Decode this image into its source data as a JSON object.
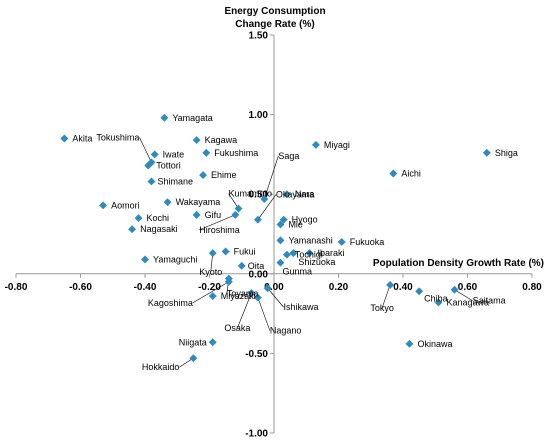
{
  "chart_data": {
    "type": "scatter",
    "title": "",
    "ylabel_line1": "Energy Consumption",
    "ylabel_line2": "Change Rate  (%)",
    "xlabel": "Population Density Growth Rate (%)",
    "xlim": [
      -0.8,
      0.8
    ],
    "ylim": [
      -1.0,
      1.5
    ],
    "xticks": [
      "-0.80",
      "-0.60",
      "-0.40",
      "-0.20",
      "0.00",
      "0.20",
      "0.40",
      "0.60",
      "0.80"
    ],
    "yticks": [
      "1.50",
      "1.00",
      "0.50",
      "0.00",
      "-0.50",
      "-1.00"
    ],
    "marker_color": "#2E8BC0",
    "grid": false,
    "legend": "none",
    "points": [
      {
        "label": "Hokkaido",
        "x": -0.25,
        "y": -0.53
      },
      {
        "label": "Aomori",
        "x": -0.53,
        "y": 0.43
      },
      {
        "label": "Iwate",
        "x": -0.37,
        "y": 0.75
      },
      {
        "label": "Miyagi",
        "x": 0.13,
        "y": 0.81
      },
      {
        "label": "Akita",
        "x": -0.65,
        "y": 0.85
      },
      {
        "label": "Yamagata",
        "x": -0.34,
        "y": 0.98
      },
      {
        "label": "Fukushima",
        "x": -0.21,
        "y": 0.76
      },
      {
        "label": "Ibaraki",
        "x": 0.11,
        "y": 0.13
      },
      {
        "label": "Tochigi",
        "x": 0.04,
        "y": 0.12
      },
      {
        "label": "Gunma",
        "x": 0.02,
        "y": 0.07
      },
      {
        "label": "Saitama",
        "x": 0.56,
        "y": -0.1
      },
      {
        "label": "Chiba",
        "x": 0.45,
        "y": -0.11
      },
      {
        "label": "Tokyo",
        "x": 0.36,
        "y": -0.07
      },
      {
        "label": "Kanagawa",
        "x": 0.51,
        "y": -0.18
      },
      {
        "label": "Niigata",
        "x": -0.19,
        "y": -0.43
      },
      {
        "label": "Toyama",
        "x": -0.14,
        "y": -0.03
      },
      {
        "label": "Ishikawa",
        "x": -0.02,
        "y": -0.09
      },
      {
        "label": "Fukui",
        "x": -0.15,
        "y": 0.14
      },
      {
        "label": "Yamanashi",
        "x": 0.02,
        "y": 0.21
      },
      {
        "label": "Nagano",
        "x": -0.05,
        "y": -0.15
      },
      {
        "label": "Gifu",
        "x": -0.24,
        "y": 0.37
      },
      {
        "label": "Shizuoka",
        "x": 0.06,
        "y": 0.13
      },
      {
        "label": "Aichi",
        "x": 0.37,
        "y": 0.63
      },
      {
        "label": "Mie",
        "x": 0.02,
        "y": 0.31
      },
      {
        "label": "Shiga",
        "x": 0.66,
        "y": 0.76
      },
      {
        "label": "Kyoto",
        "x": -0.19,
        "y": 0.13
      },
      {
        "label": "Osaka",
        "x": -0.07,
        "y": -0.12
      },
      {
        "label": "Hyogo",
        "x": 0.03,
        "y": 0.34
      },
      {
        "label": "Nara",
        "x": 0.04,
        "y": 0.5
      },
      {
        "label": "Wakayama",
        "x": -0.33,
        "y": 0.45
      },
      {
        "label": "Tottori",
        "x": -0.39,
        "y": 0.68
      },
      {
        "label": "Shimane",
        "x": -0.38,
        "y": 0.58
      },
      {
        "label": "Okayama",
        "x": -0.05,
        "y": 0.34
      },
      {
        "label": "Hiroshima",
        "x": -0.12,
        "y": 0.37
      },
      {
        "label": "Yamaguchi",
        "x": -0.4,
        "y": 0.09
      },
      {
        "label": "Tokushima",
        "x": -0.38,
        "y": 0.7
      },
      {
        "label": "Kagawa",
        "x": -0.24,
        "y": 0.84
      },
      {
        "label": "Ehime",
        "x": -0.22,
        "y": 0.62
      },
      {
        "label": "Kochi",
        "x": -0.42,
        "y": 0.35
      },
      {
        "label": "Fukuoka",
        "x": 0.21,
        "y": 0.2
      },
      {
        "label": "Saga",
        "x": -0.03,
        "y": 0.47
      },
      {
        "label": "Nagasaki",
        "x": -0.44,
        "y": 0.28
      },
      {
        "label": "Kumamoto",
        "x": -0.11,
        "y": 0.41
      },
      {
        "label": "Oita",
        "x": -0.1,
        "y": 0.05
      },
      {
        "label": "Miyazaki",
        "x": -0.19,
        "y": -0.14
      },
      {
        "label": "Kagoshima",
        "x": -0.14,
        "y": -0.05
      },
      {
        "label": "Okinawa",
        "x": 0.42,
        "y": -0.44
      }
    ]
  }
}
